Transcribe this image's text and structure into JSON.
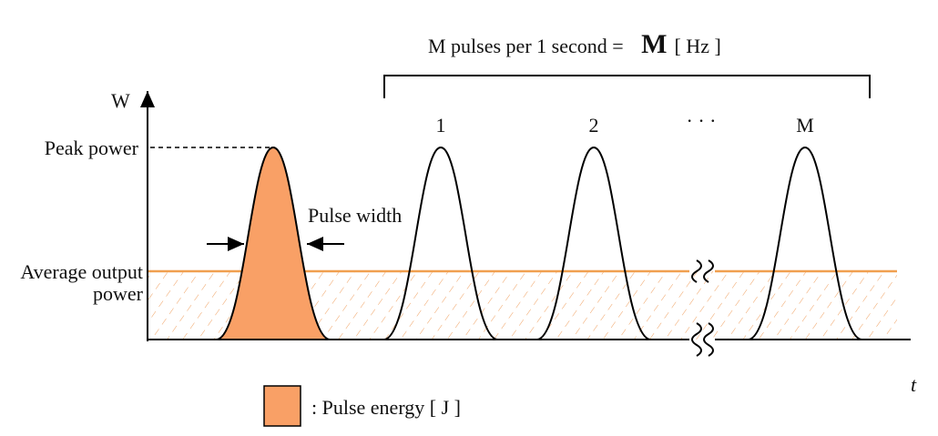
{
  "header": {
    "rate_text": "M pulses per 1 second = ",
    "rate_symbol": "M",
    "rate_unit": "[ Hz ]"
  },
  "axes": {
    "y_label": "W",
    "x_label": "t"
  },
  "labels": {
    "peak_power": "Peak power",
    "pulse_width": "Pulse width",
    "average_power": [
      "Average output",
      "power"
    ]
  },
  "pulses": [
    "1",
    "2",
    "· · ·",
    "M"
  ],
  "legend": {
    "label": ": Pulse energy [ J ]"
  }
}
